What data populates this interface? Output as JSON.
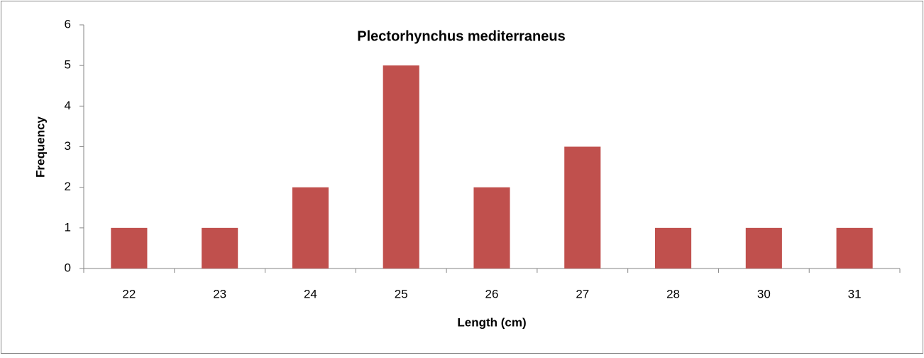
{
  "chart_data": {
    "type": "bar",
    "title": "Plectorhynchus mediterraneus",
    "x_label": "Length (cm)",
    "y_label": "Frequency",
    "categories": [
      "22",
      "23",
      "24",
      "25",
      "26",
      "27",
      "28",
      "30",
      "31"
    ],
    "values": [
      1,
      1,
      2,
      5,
      2,
      3,
      1,
      1,
      1
    ],
    "color": "#c0504d",
    "ylim": [
      0,
      6
    ],
    "yticks": [
      0,
      1,
      2,
      3,
      4,
      5,
      6
    ],
    "grid": false
  }
}
